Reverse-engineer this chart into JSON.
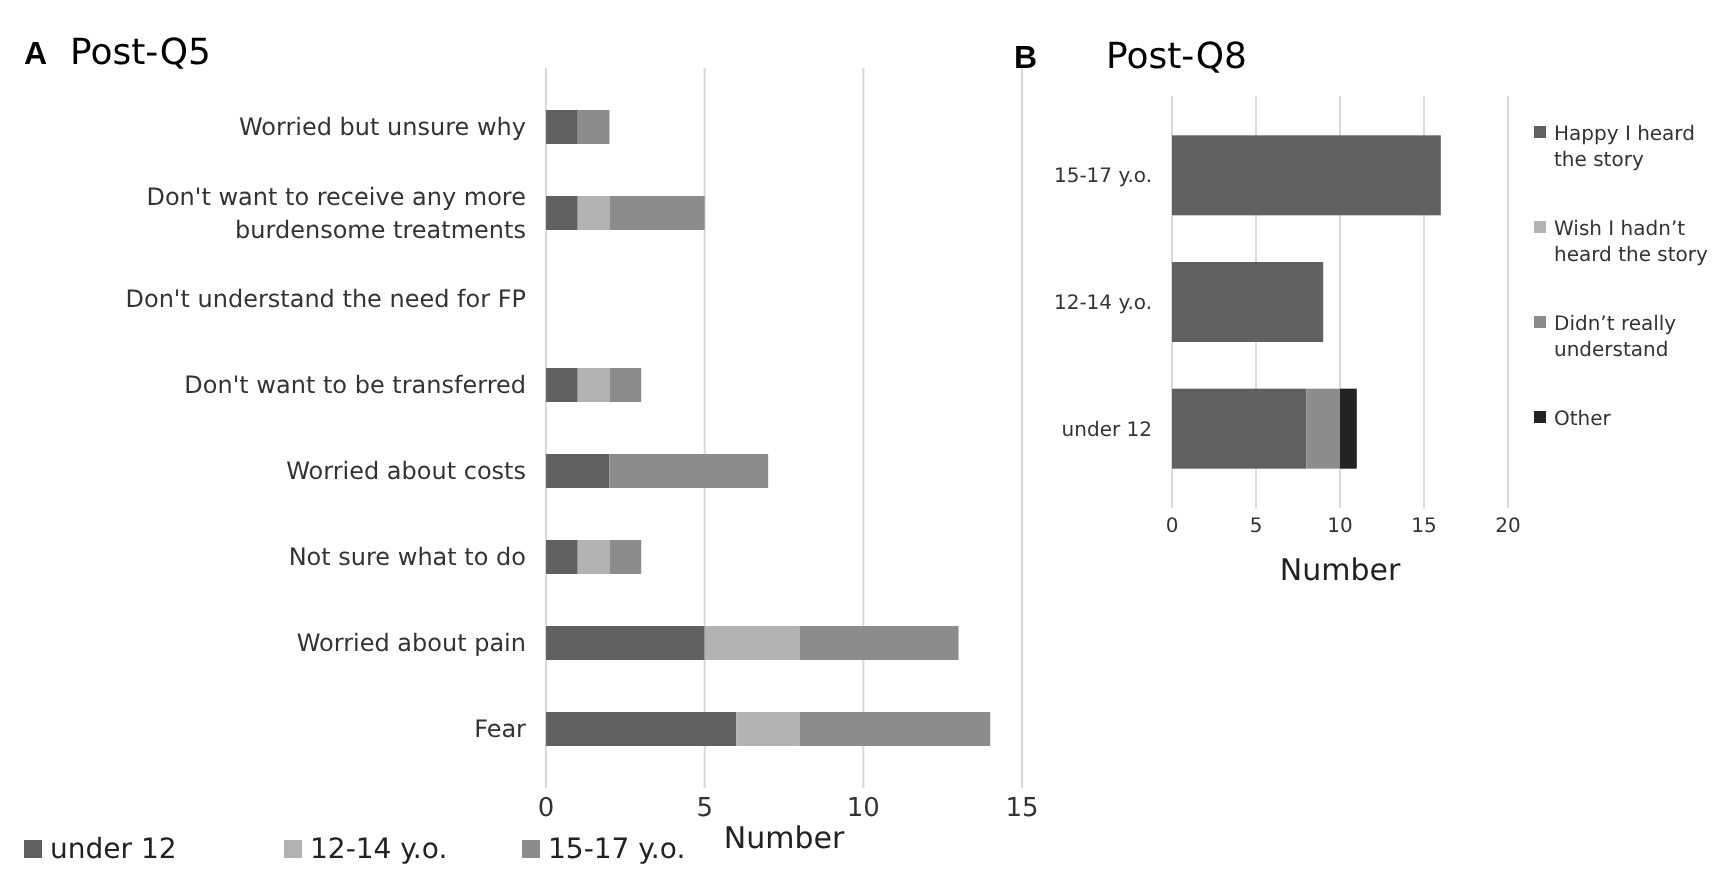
{
  "chart_data": [
    {
      "type": "bar",
      "orientation": "horizontal",
      "stacked": true,
      "title": "Post-Q5",
      "annotations": [
        "A"
      ],
      "xlabel": "Number",
      "categories": [
        "Worried but unsure why",
        "Don't want to receive any more burdensome treatments",
        "Don't understand the need for FP",
        "Don't want to be transferred",
        "Worried about costs",
        "Not sure what to do",
        "Worried about pain",
        "Fear"
      ],
      "series": [
        {
          "name": "under 12",
          "color": "#606060",
          "values": [
            1,
            1,
            0,
            1,
            2,
            1,
            5,
            6
          ]
        },
        {
          "name": "12-14 y.o.",
          "color": "#b3b3b3",
          "values": [
            0,
            1,
            0,
            1,
            0,
            1,
            3,
            2
          ]
        },
        {
          "name": "15-17 y.o.",
          "color": "#8c8c8c",
          "values": [
            1,
            3,
            0,
            1,
            5,
            1,
            5,
            6
          ]
        }
      ],
      "xlim": [
        0,
        15
      ],
      "xticks": [
        0,
        5,
        10,
        15
      ],
      "grid": "x",
      "legend": "bottom"
    },
    {
      "type": "bar",
      "orientation": "horizontal",
      "stacked": true,
      "title": "Post-Q8",
      "annotations": [
        "B"
      ],
      "xlabel": "Number",
      "categories": [
        "15-17 y.o.",
        "12-14 y.o.",
        "under 12"
      ],
      "series": [
        {
          "name": "Happy I heard the story",
          "color": "#606060",
          "values": [
            16,
            9,
            8
          ]
        },
        {
          "name": "Wish I hadn’t heard the story",
          "color": "#b3b3b3",
          "values": [
            0,
            0,
            0
          ]
        },
        {
          "name": "Didn’t really understand",
          "color": "#8c8c8c",
          "values": [
            0,
            0,
            2
          ]
        },
        {
          "name": "Other",
          "color": "#222222",
          "values": [
            0,
            0,
            1
          ]
        }
      ],
      "xlim": [
        0,
        20
      ],
      "xticks": [
        0,
        5,
        10,
        15,
        20
      ],
      "grid": "x",
      "legend": "right"
    }
  ]
}
